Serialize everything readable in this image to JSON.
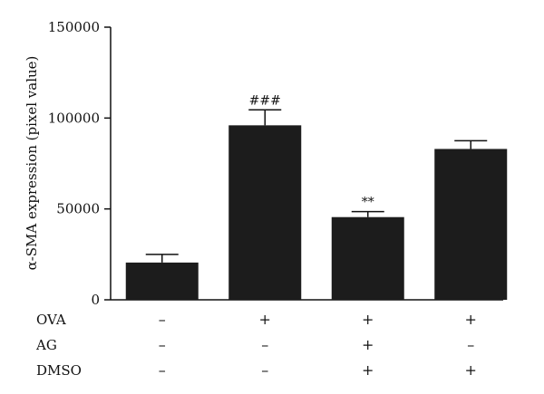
{
  "chart_data": {
    "type": "bar",
    "ylabel": "α-SMA expression (pixel value)",
    "ylim": [
      0,
      150000
    ],
    "yticks": [
      0,
      50000,
      100000,
      150000
    ],
    "ytick_labels": [
      "0",
      "50000",
      "100000",
      "150000"
    ],
    "grid": false,
    "bar_color": "#1c1c1c",
    "series": [
      {
        "values": [
          20500,
          96000,
          45500,
          83000
        ],
        "errors": [
          4500,
          8500,
          3000,
          4500
        ],
        "annotations": [
          "",
          "###",
          "**",
          ""
        ]
      }
    ],
    "conditions": [
      {
        "label": "OVA",
        "values": [
          "–",
          "+",
          "+",
          "+"
        ]
      },
      {
        "label": "AG",
        "values": [
          "–",
          "–",
          "+",
          "–"
        ]
      },
      {
        "label": "DMSO",
        "values": [
          "–",
          "–",
          "+",
          "+"
        ]
      }
    ]
  }
}
